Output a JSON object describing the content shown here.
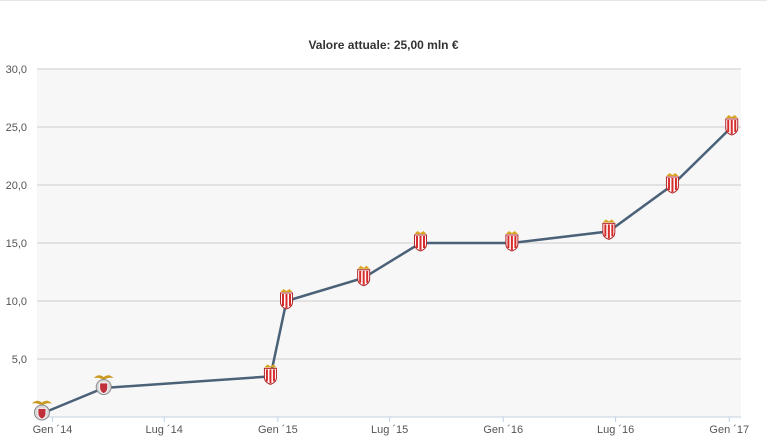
{
  "chart_data": {
    "type": "line",
    "title": "Valore attuale: 25,00 mln €",
    "xlabel": "",
    "ylabel": "",
    "ylim": [
      0,
      30
    ],
    "yticks": [
      5,
      10,
      15,
      20,
      25,
      30
    ],
    "ytick_labels": [
      "5,0",
      "10,0",
      "15,0",
      "20,0",
      "25,0",
      "30,0"
    ],
    "xticks": [
      "2014-01-01",
      "2014-07-01",
      "2015-01-01",
      "2015-07-01",
      "2016-01-01",
      "2016-07-01",
      "2017-01-01"
    ],
    "xtick_labels": [
      "Gen ´14",
      "Lug ´14",
      "Gen ´15",
      "Lug ´15",
      "Gen ´16",
      "Lug ´16",
      "Gen ´17"
    ],
    "grid": true,
    "line_color": "#4a6178",
    "series": [
      {
        "x": [
          "2013-12-15",
          "2014-03-25",
          "2014-12-20",
          "2015-01-15",
          "2015-05-20",
          "2015-08-20",
          "2016-01-15",
          "2016-06-20",
          "2016-10-01",
          "2017-01-05"
        ],
        "y": [
          0.3,
          2.5,
          3.5,
          10.0,
          12.0,
          15.0,
          15.0,
          16.0,
          20.0,
          25.0
        ],
        "markers": [
          "benfica",
          "benfica",
          "monaco",
          "monaco",
          "monaco",
          "monaco",
          "monaco",
          "monaco",
          "monaco",
          "monaco"
        ]
      }
    ]
  }
}
